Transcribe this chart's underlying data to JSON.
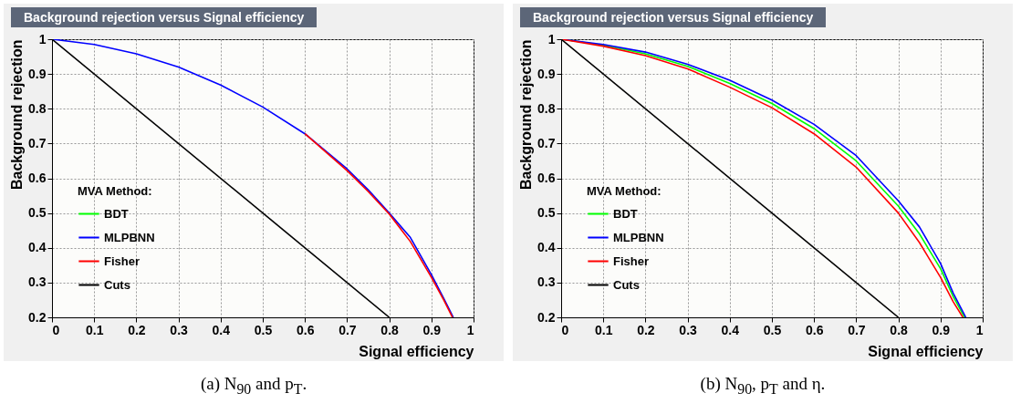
{
  "chart_data": [
    {
      "type": "line",
      "title": "Background rejection versus Signal efficiency",
      "xlabel": "Signal efficiency",
      "ylabel": "Background rejection",
      "legend_title": "MVA Method:",
      "legend": "bottom left",
      "grid": true,
      "line_style": "solid",
      "xlim": [
        0,
        1
      ],
      "ylim": [
        0.2,
        1
      ],
      "xticks": [
        0,
        0.1,
        0.2,
        0.3,
        0.4,
        0.5,
        0.6,
        0.7,
        0.8,
        0.9,
        1
      ],
      "yticks": [
        0.2,
        0.3,
        0.4,
        0.5,
        0.6,
        0.7,
        0.8,
        0.9,
        1
      ],
      "annotations": [
        "(a) N$_{90}$ and p$_{T}$."
      ],
      "series": [
        {
          "name": "BDT",
          "color": "#00ff00"
        },
        {
          "name": "MLPBNN",
          "color": "#0000ff",
          "x": [
            0,
            0.1,
            0.2,
            0.3,
            0.4,
            0.5,
            0.6,
            0.7,
            0.75,
            0.8,
            0.85,
            0.9,
            0.93,
            0.952
          ],
          "values": [
            1,
            0.985,
            0.958,
            0.92,
            0.868,
            0.805,
            0.728,
            0.627,
            0.567,
            0.5,
            0.43,
            0.323,
            0.253,
            0.2
          ]
        },
        {
          "name": "Fisher",
          "color": "#ff0000",
          "x": [
            0.6,
            0.7,
            0.75,
            0.8,
            0.85,
            0.9,
            0.93,
            0.95
          ],
          "values": [
            0.728,
            0.622,
            0.562,
            0.497,
            0.418,
            0.315,
            0.248,
            0.2
          ]
        },
        {
          "name": "Cuts",
          "color": "#000000",
          "x": [
            0,
            0.8
          ],
          "values": [
            1,
            0.2
          ]
        }
      ]
    },
    {
      "type": "line",
      "title": "Background rejection versus Signal efficiency",
      "xlabel": "Signal efficiency",
      "ylabel": "Background rejection",
      "legend_title": "MVA Method:",
      "legend": "bottom left",
      "grid": true,
      "line_style": "solid",
      "xlim": [
        0,
        1
      ],
      "ylim": [
        0.2,
        1
      ],
      "xticks": [
        0,
        0.1,
        0.2,
        0.3,
        0.4,
        0.5,
        0.6,
        0.7,
        0.8,
        0.9,
        1
      ],
      "yticks": [
        0.2,
        0.3,
        0.4,
        0.5,
        0.6,
        0.7,
        0.8,
        0.9,
        1
      ],
      "annotations": [
        "(b) N$_{90}$, p$_{T}$ and η."
      ],
      "series": [
        {
          "name": "BDT",
          "color": "#00ff00",
          "x": [
            0,
            0.1,
            0.2,
            0.3,
            0.4,
            0.5,
            0.6,
            0.7,
            0.8,
            0.85,
            0.9,
            0.93,
            0.957
          ],
          "values": [
            1,
            0.983,
            0.958,
            0.922,
            0.873,
            0.815,
            0.743,
            0.65,
            0.52,
            0.44,
            0.34,
            0.26,
            0.2
          ]
        },
        {
          "name": "MLPBNN",
          "color": "#0000ff",
          "x": [
            0,
            0.1,
            0.2,
            0.3,
            0.4,
            0.5,
            0.6,
            0.7,
            0.8,
            0.85,
            0.9,
            0.93,
            0.96
          ],
          "values": [
            1,
            0.985,
            0.963,
            0.928,
            0.882,
            0.825,
            0.755,
            0.665,
            0.535,
            0.46,
            0.355,
            0.27,
            0.2
          ]
        },
        {
          "name": "Fisher",
          "color": "#ff0000",
          "x": [
            0,
            0.1,
            0.2,
            0.3,
            0.4,
            0.5,
            0.6,
            0.7,
            0.8,
            0.85,
            0.9,
            0.93,
            0.953
          ],
          "values": [
            1,
            0.98,
            0.953,
            0.915,
            0.862,
            0.803,
            0.728,
            0.632,
            0.5,
            0.415,
            0.315,
            0.245,
            0.2
          ]
        },
        {
          "name": "Cuts",
          "color": "#000000",
          "x": [
            0,
            0.8
          ],
          "values": [
            1,
            0.2
          ]
        }
      ]
    }
  ]
}
